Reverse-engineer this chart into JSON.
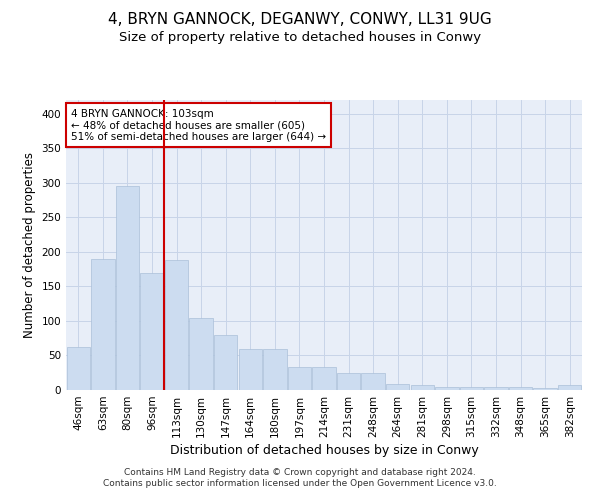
{
  "title": "4, BRYN GANNOCK, DEGANWY, CONWY, LL31 9UG",
  "subtitle": "Size of property relative to detached houses in Conwy",
  "xlabel": "Distribution of detached houses by size in Conwy",
  "ylabel": "Number of detached properties",
  "categories": [
    "46sqm",
    "63sqm",
    "80sqm",
    "96sqm",
    "113sqm",
    "130sqm",
    "147sqm",
    "164sqm",
    "180sqm",
    "197sqm",
    "214sqm",
    "231sqm",
    "248sqm",
    "264sqm",
    "281sqm",
    "298sqm",
    "315sqm",
    "332sqm",
    "348sqm",
    "365sqm",
    "382sqm"
  ],
  "values": [
    63,
    190,
    296,
    170,
    188,
    104,
    79,
    60,
    60,
    33,
    33,
    24,
    24,
    9,
    7,
    4,
    4,
    4,
    4,
    3,
    7
  ],
  "bar_color": "#ccdcf0",
  "bar_edge_color": "#aabfd8",
  "vline_x_index": 3.5,
  "vline_color": "#cc0000",
  "annotation_text": "4 BRYN GANNOCK: 103sqm\n← 48% of detached houses are smaller (605)\n51% of semi-detached houses are larger (644) →",
  "annotation_box_color": "#ffffff",
  "annotation_box_edge_color": "#cc0000",
  "footnote": "Contains HM Land Registry data © Crown copyright and database right 2024.\nContains public sector information licensed under the Open Government Licence v3.0.",
  "ylim": [
    0,
    420
  ],
  "yticks": [
    0,
    50,
    100,
    150,
    200,
    250,
    300,
    350,
    400
  ],
  "grid_color": "#c8d4e8",
  "bg_color": "#e8eef8",
  "title_fontsize": 11,
  "subtitle_fontsize": 9.5,
  "axis_label_fontsize": 8.5,
  "xlabel_fontsize": 9,
  "tick_fontsize": 7.5,
  "footnote_fontsize": 6.5,
  "annotation_fontsize": 7.5
}
